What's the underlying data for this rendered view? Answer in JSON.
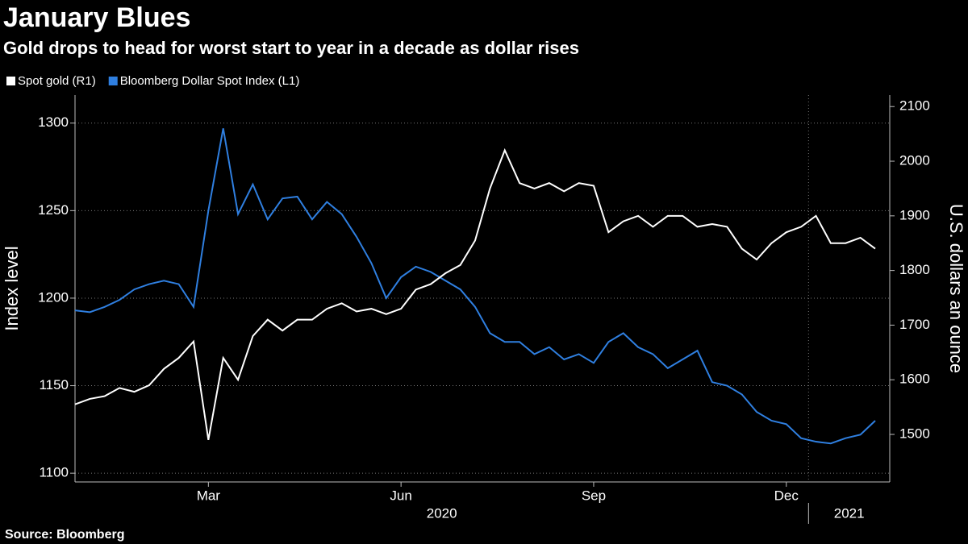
{
  "chart_data": {
    "type": "line",
    "title": "January Blues",
    "subtitle": "Gold drops to head for worst start to year in a decade as dollar rises",
    "source": "Source: Bloomberg",
    "ylabel": "Index level",
    "y2label": "U.S. dollars an ounce",
    "categories": [
      null,
      null,
      null,
      null,
      null,
      null,
      null,
      null,
      null,
      "Mar",
      null,
      null,
      null,
      null,
      null,
      null,
      null,
      null,
      null,
      null,
      null,
      null,
      "Jun",
      null,
      null,
      null,
      null,
      null,
      null,
      null,
      null,
      null,
      null,
      null,
      null,
      "Sep",
      null,
      null,
      null,
      null,
      null,
      null,
      null,
      null,
      null,
      null,
      null,
      null,
      "Dec",
      null,
      null,
      null,
      null,
      null,
      null
    ],
    "groups": [
      {
        "label": "2020",
        "count": 50
      },
      {
        "label": "2021",
        "count": 5
      }
    ],
    "series": [
      {
        "name": "Spot gold (R1)",
        "color": "#ffffff",
        "axis": "y2",
        "values": [
          1555,
          1565,
          1570,
          1585,
          1578,
          1590,
          1620,
          1640,
          1670,
          1490,
          1640,
          1600,
          1680,
          1710,
          1690,
          1710,
          1710,
          1730,
          1740,
          1725,
          1730,
          1720,
          1730,
          1765,
          1775,
          1795,
          1810,
          1855,
          1950,
          2020,
          1960,
          1950,
          1960,
          1945,
          1960,
          1955,
          1870,
          1890,
          1900,
          1880,
          1900,
          1900,
          1880,
          1885,
          1880,
          1840,
          1820,
          1850,
          1870,
          1880,
          1900,
          1850,
          1850,
          1860,
          1840
        ]
      },
      {
        "name": "Bloomberg Dollar Spot Index (L1)",
        "color": "#2f7fe0",
        "axis": "y",
        "values": [
          1193,
          1192,
          1195,
          1199,
          1205,
          1208,
          1210,
          1208,
          1195,
          1250,
          1297,
          1248,
          1265,
          1245,
          1257,
          1258,
          1245,
          1255,
          1248,
          1235,
          1220,
          1200,
          1212,
          1218,
          1215,
          1210,
          1205,
          1195,
          1180,
          1175,
          1175,
          1168,
          1172,
          1165,
          1168,
          1163,
          1175,
          1180,
          1172,
          1168,
          1160,
          1165,
          1170,
          1152,
          1150,
          1145,
          1135,
          1130,
          1128,
          1120,
          1118,
          1117,
          1120,
          1122,
          1130
        ]
      }
    ],
    "ylim": [
      1095,
      1316
    ],
    "yticks": [
      1100,
      1150,
      1200,
      1250,
      1300
    ],
    "y2lim": [
      1413,
      2121
    ],
    "y2ticks": [
      1500,
      1600,
      1700,
      1800,
      1900,
      2000,
      2100
    ],
    "grid": true
  }
}
